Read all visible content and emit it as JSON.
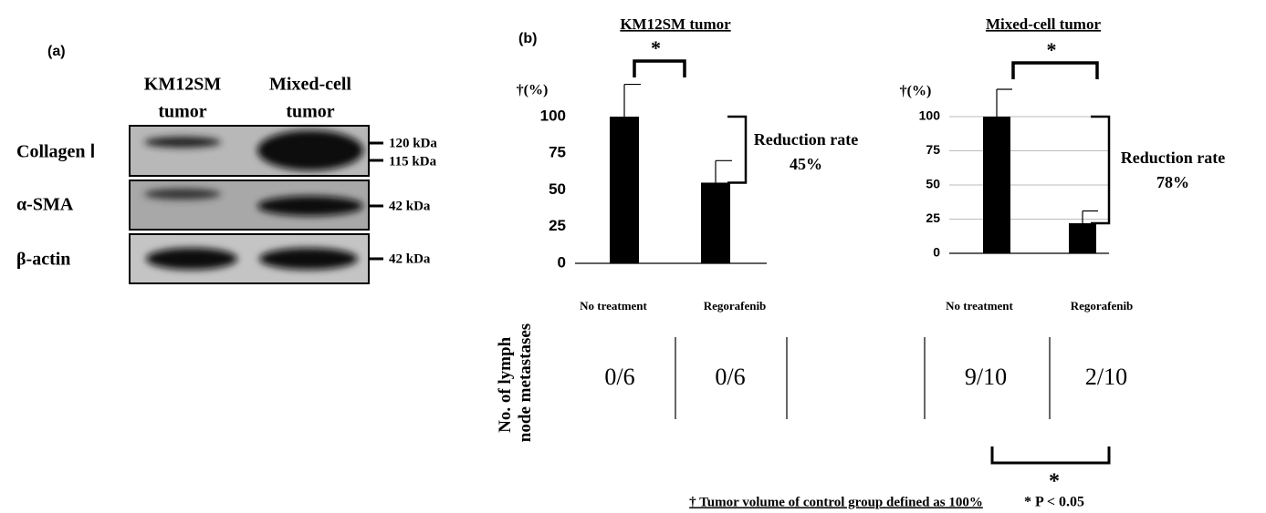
{
  "panel_a": {
    "label": "(a)",
    "columns": [
      [
        "KM12SM",
        "tumor"
      ],
      [
        "Mixed-cell",
        "tumor"
      ]
    ],
    "rows": [
      "Collagen Ⅰ",
      "α-SMA",
      "β-actin"
    ],
    "markers": [
      "120 kDa",
      "115 kDa",
      "42 kDa",
      "42 kDa"
    ]
  },
  "panel_b": {
    "label": "(b)"
  },
  "chart_data": [
    {
      "type": "bar",
      "title": "KM12SM tumor",
      "y_label": "†(%)",
      "categories": [
        "No treatment",
        "Regorafenib"
      ],
      "values": [
        100,
        55
      ],
      "errors": [
        22,
        15
      ],
      "color": "#000000",
      "ylim": [
        0,
        125
      ],
      "yticks": [
        0,
        25,
        50,
        75,
        100
      ],
      "grid": false,
      "significance": "*",
      "reduction_label": "Reduction rate",
      "reduction_value": "45%"
    },
    {
      "type": "bar",
      "title": "Mixed-cell tumor",
      "y_label": "†(%)",
      "categories": [
        "No treatment",
        "Regorafenib"
      ],
      "values": [
        100,
        22
      ],
      "errors": [
        20,
        9
      ],
      "color": "#000000",
      "ylim": [
        0,
        125
      ],
      "yticks": [
        0,
        25,
        50,
        75,
        100
      ],
      "grid": true,
      "significance": "*",
      "reduction_label": "Reduction rate",
      "reduction_value": "78%"
    }
  ],
  "table": {
    "row_label": "No. of lymph node metastases",
    "values": [
      [
        "0/6",
        "0/6"
      ],
      [
        "9/10",
        "2/10"
      ]
    ],
    "significance": "*"
  },
  "footnotes": [
    "† Tumor volume of control group defined as 100%",
    "* P < 0.05"
  ]
}
